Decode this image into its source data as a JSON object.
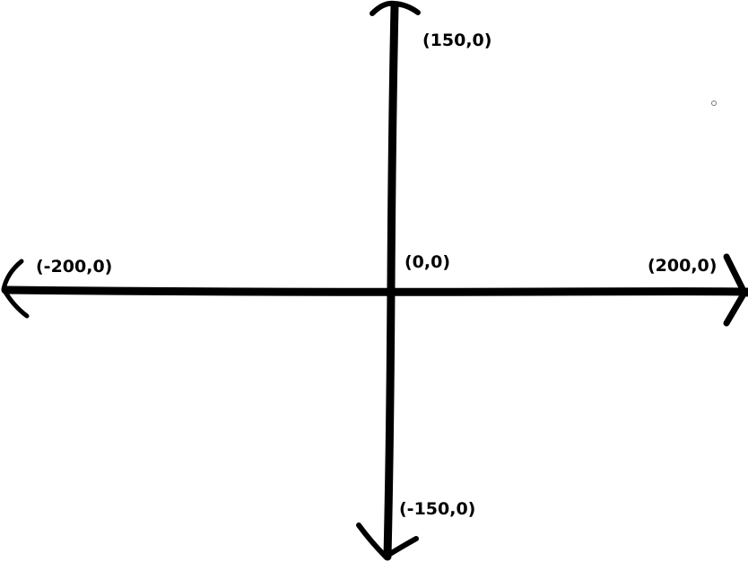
{
  "diagram": {
    "labels": {
      "top": "(150,0)",
      "left": "(-200,0)",
      "origin": "(0,0)",
      "right": "(200,0)",
      "bottom": "(-150,0)"
    },
    "stroke_color": "#000000",
    "background_color": "#ffffff"
  }
}
